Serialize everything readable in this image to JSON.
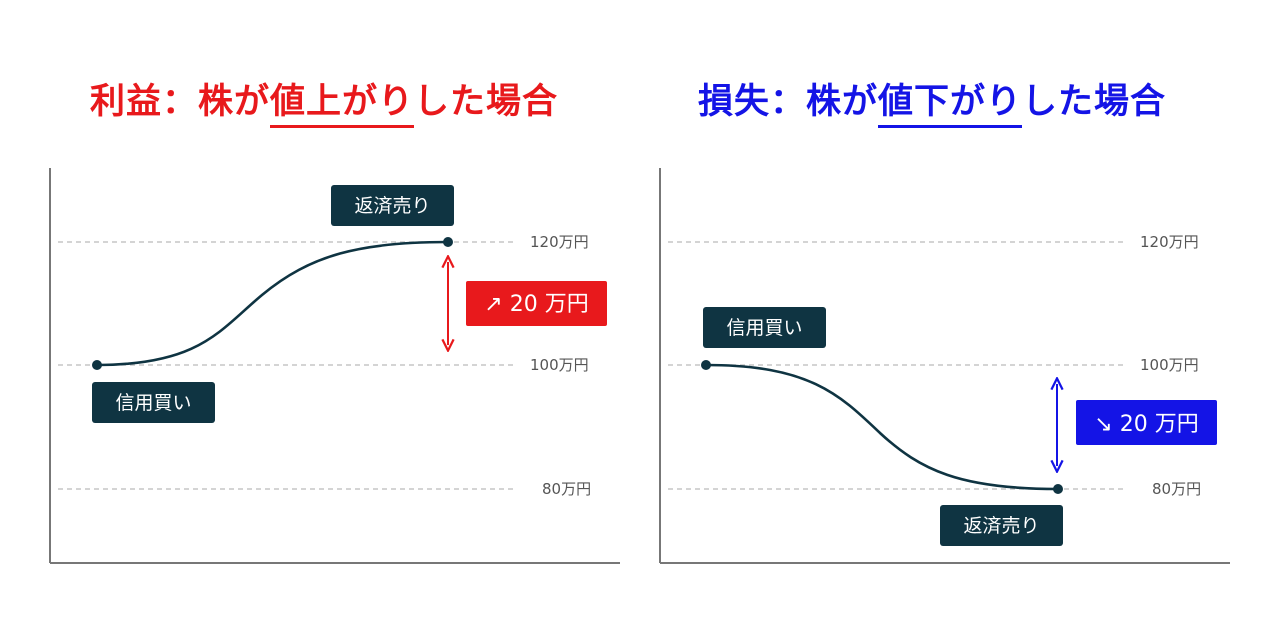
{
  "colors": {
    "profit": "#e8191c",
    "loss": "#1414e6",
    "curve": "#0f3442",
    "label_bg": "#0f3442",
    "gridline": "#bbbbbb",
    "axis": "#777777"
  },
  "panels": {
    "left": {
      "title_pre": "利益：株が",
      "title_highlight": "値上がり",
      "title_post": "した場合",
      "buy_label": "信用買い",
      "sell_label": "返済売り",
      "badge": "↗ 20 万円",
      "ticks": [
        "120万円",
        "100万円",
        "80万円"
      ]
    },
    "right": {
      "title_pre": "損失：株が",
      "title_highlight": "値下がり",
      "title_post": "した場合",
      "buy_label": "信用買い",
      "sell_label": "返済売り",
      "badge": "↘ 20 万円",
      "ticks": [
        "120万円",
        "100万円",
        "80万円"
      ]
    }
  }
}
